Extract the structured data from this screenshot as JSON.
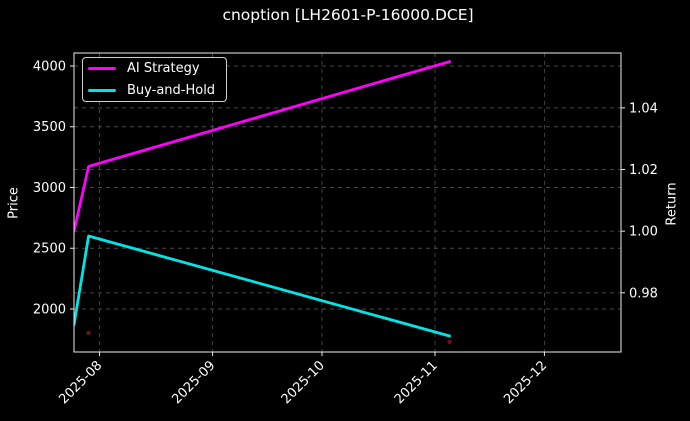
{
  "chart_data": {
    "type": "line",
    "title": "cnoption [LH2601-P-16000.DCE]",
    "grid": true,
    "legend_position": "top-left",
    "colors": {
      "background": "#000000",
      "text": "#ffffff",
      "grid": "#4a4a4a",
      "spine": "#ececec"
    },
    "x_axis": {
      "range": [
        "2025-07-25",
        "2025-12-22"
      ],
      "ticks": [
        {
          "value": "2025-08-01",
          "label": "2025-08"
        },
        {
          "value": "2025-09-01",
          "label": "2025-09"
        },
        {
          "value": "2025-10-01",
          "label": "2025-10"
        },
        {
          "value": "2025-11-01",
          "label": "2025-11"
        },
        {
          "value": "2025-12-01",
          "label": "2025-12"
        }
      ]
    },
    "left_axis": {
      "label": "Price",
      "range": [
        1646,
        4107
      ],
      "ticks": [
        {
          "value": 2000,
          "label": "2000"
        },
        {
          "value": 2500,
          "label": "2500"
        },
        {
          "value": 3000,
          "label": "3000"
        },
        {
          "value": 3500,
          "label": "3500"
        },
        {
          "value": 4000,
          "label": "4000"
        }
      ]
    },
    "right_axis": {
      "label": "Return",
      "range": [
        0.9608,
        1.0578
      ],
      "ticks": [
        {
          "value": 0.98,
          "label": "0.98"
        },
        {
          "value": 1.0,
          "label": "1.00"
        },
        {
          "value": 1.02,
          "label": "1.02"
        },
        {
          "value": 1.04,
          "label": "1.04"
        }
      ]
    },
    "series": [
      {
        "name": "AI Strategy",
        "color": "#ff00ff",
        "axis": "right",
        "points": [
          {
            "x": "2025-07-25",
            "y": 1.0
          },
          {
            "x": "2025-07-29",
            "y": 1.021
          },
          {
            "x": "2025-11-05",
            "y": 1.055
          }
        ]
      },
      {
        "name": "Buy-and-Hold",
        "color": "#00e5e5",
        "axis": "left",
        "points": [
          {
            "x": "2025-07-25",
            "y": 1869
          },
          {
            "x": "2025-07-29",
            "y": 2601
          },
          {
            "x": "2025-11-05",
            "y": 1778
          }
        ]
      }
    ],
    "markers": {
      "color": "#6b1212",
      "axis": "left",
      "points": [
        {
          "x": "2025-07-29",
          "y": 1803
        },
        {
          "x": "2025-11-05",
          "y": 1729
        }
      ]
    }
  }
}
